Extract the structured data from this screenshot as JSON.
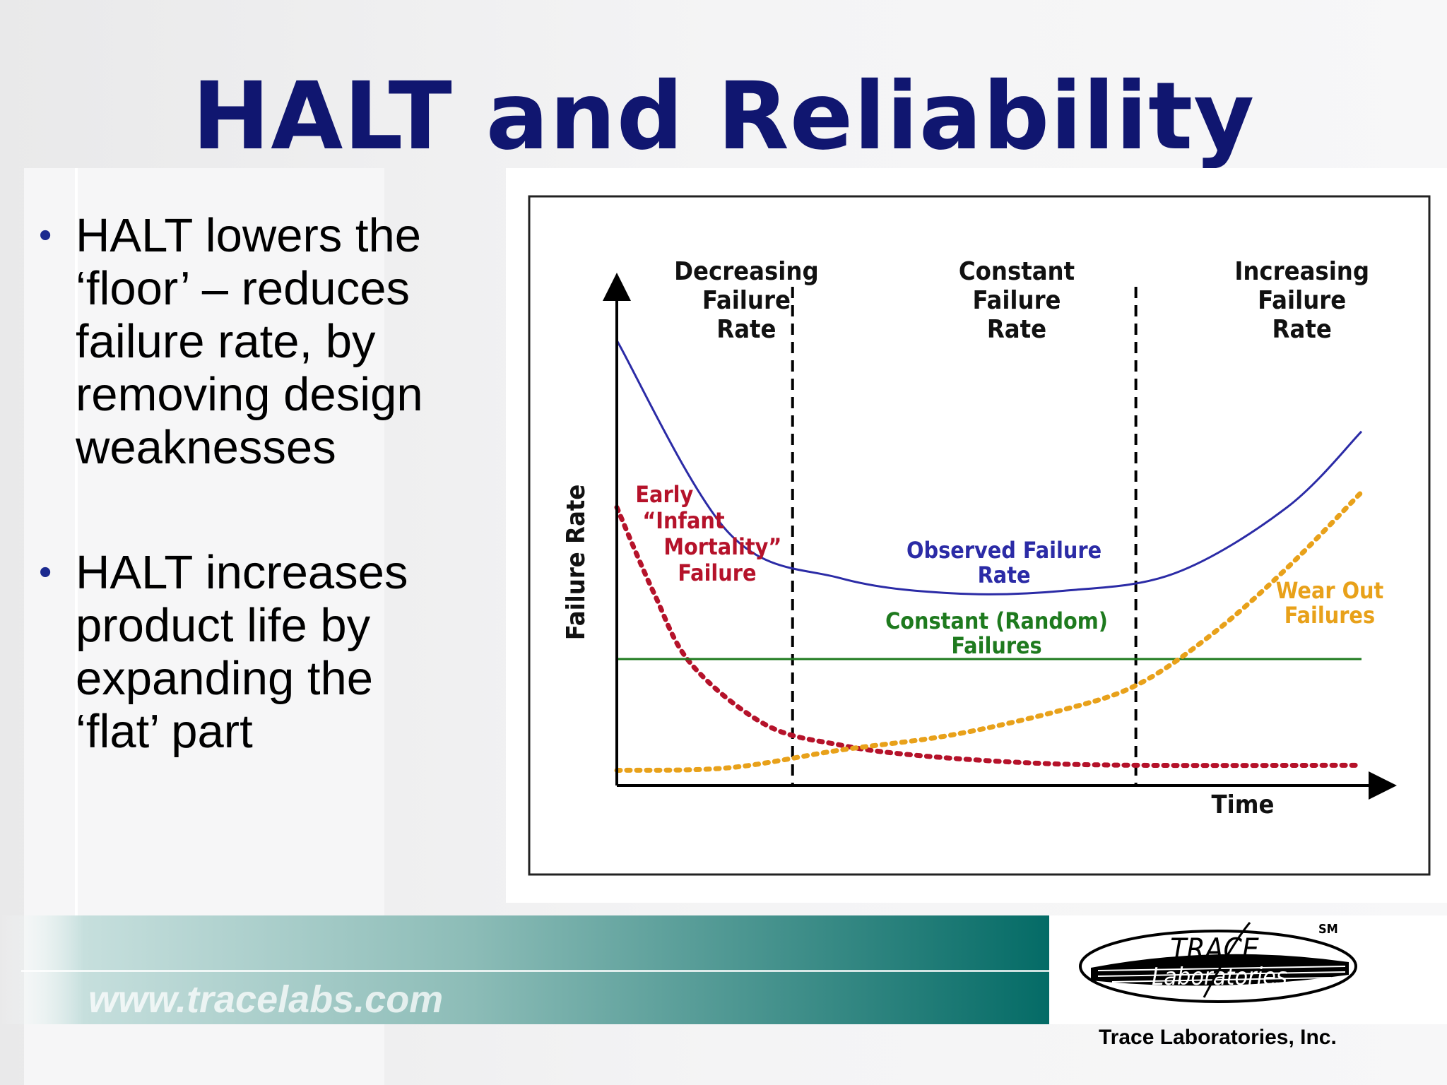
{
  "slide": {
    "title": "HALT and Reliability",
    "bullets": [
      {
        "lines": [
          "HALT lowers the",
          "‘floor’ – reduces",
          "failure rate, by",
          "removing design",
          "weaknesses"
        ]
      },
      {
        "lines": [
          "HALT increases",
          "product life by",
          "expanding the",
          "‘flat’ part"
        ]
      }
    ],
    "bullet_symbol": "•"
  },
  "chart_data": {
    "type": "line",
    "xlabel": "Time",
    "ylabel": "Failure Rate",
    "regions": [
      {
        "lines": [
          "Decreasing",
          "Failure",
          "Rate"
        ]
      },
      {
        "lines": [
          "Constant",
          "Failure",
          "Rate"
        ]
      },
      {
        "lines": [
          "Increasing",
          "Failure",
          "Rate"
        ]
      }
    ],
    "series": [
      {
        "name": "Observed Failure Rate",
        "label_lines": [
          "Observed Failure",
          "Rate"
        ],
        "color": "#2b2ba6",
        "style": "solid",
        "x": [
          0,
          0.15,
          0.3,
          0.45,
          0.6,
          0.75,
          0.9,
          1.0
        ],
        "y": [
          0.88,
          0.5,
          0.41,
          0.38,
          0.385,
          0.42,
          0.55,
          0.7
        ]
      },
      {
        "name": "Early “Infant Mortality” Failure",
        "label_lines": [
          "Early",
          "“Infant",
          "Mortality”",
          "Failure"
        ],
        "color": "#b5122a",
        "style": "dotted",
        "x": [
          0,
          0.05,
          0.1,
          0.2,
          0.3,
          0.4,
          0.55,
          0.7,
          1.0
        ],
        "y": [
          0.55,
          0.38,
          0.24,
          0.12,
          0.08,
          0.06,
          0.045,
          0.04,
          0.04
        ]
      },
      {
        "name": "Constant (Random) Failures",
        "label_lines": [
          "Constant (Random)",
          "Failures"
        ],
        "color": "#1e7a1e",
        "style": "solid",
        "x": [
          0,
          1.0
        ],
        "y": [
          0.25,
          0.25
        ]
      },
      {
        "name": "Wear Out Failures",
        "label_lines": [
          "Wear Out",
          "Failures"
        ],
        "color": "#e8a11a",
        "style": "dotted",
        "x": [
          0,
          0.15,
          0.3,
          0.45,
          0.6,
          0.7,
          0.8,
          0.9,
          1.0
        ],
        "y": [
          0.03,
          0.035,
          0.07,
          0.1,
          0.15,
          0.2,
          0.3,
          0.43,
          0.58
        ]
      }
    ]
  },
  "footer": {
    "url": "www.tracelabs.com",
    "logo_top": "TRACE",
    "logo_bottom": "Laboratories",
    "service_mark": "SM",
    "company": "Trace Laboratories, Inc."
  }
}
